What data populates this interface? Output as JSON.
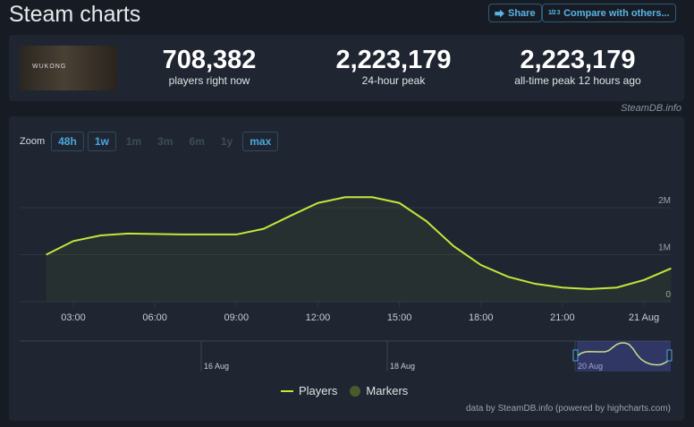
{
  "header": {
    "title": "Steam charts",
    "share_label": "Share",
    "compare_label": "Compare with others...",
    "compare_icon_text": "1/2 3"
  },
  "game": {
    "thumbnail_text": "WUKONG"
  },
  "stats": [
    {
      "value": "708,382",
      "label": "players right now"
    },
    {
      "value": "2,223,179",
      "label": "24-hour peak"
    },
    {
      "value": "2,223,179",
      "label": "all-time peak 12 hours ago"
    }
  ],
  "credit": "SteamDB.info",
  "zoom": {
    "label": "Zoom",
    "options": [
      {
        "label": "48h",
        "active": true
      },
      {
        "label": "1w",
        "active": true
      },
      {
        "label": "1m",
        "active": false
      },
      {
        "label": "3m",
        "active": false
      },
      {
        "label": "6m",
        "active": false
      },
      {
        "label": "1y",
        "active": false
      },
      {
        "label": "max",
        "active": true
      }
    ]
  },
  "legend": {
    "players": "Players",
    "markers": "Markers"
  },
  "footer": "data by SteamDB.info (powered by highcharts.com)",
  "colors": {
    "line": "#c5e63a",
    "marker": "#4b5a2c",
    "accent": "#4aa8e0"
  },
  "chart_data": {
    "type": "line",
    "series": [
      {
        "name": "Players",
        "x": [
          "20 Aug 02:00",
          "20 Aug 03:00",
          "20 Aug 04:00",
          "20 Aug 05:00",
          "20 Aug 06:00",
          "20 Aug 07:00",
          "20 Aug 08:00",
          "20 Aug 09:00",
          "20 Aug 10:00",
          "20 Aug 11:00",
          "20 Aug 12:00",
          "20 Aug 13:00",
          "20 Aug 14:00",
          "20 Aug 15:00",
          "20 Aug 16:00",
          "20 Aug 17:00",
          "20 Aug 18:00",
          "20 Aug 19:00",
          "20 Aug 20:00",
          "20 Aug 21:00",
          "20 Aug 22:00",
          "20 Aug 23:00",
          "21 Aug 00:00",
          "21 Aug 01:00"
        ],
        "values": [
          1000000,
          1290000,
          1410000,
          1450000,
          1440000,
          1430000,
          1430000,
          1430000,
          1550000,
          1830000,
          2100000,
          2223179,
          2223179,
          2100000,
          1710000,
          1180000,
          780000,
          530000,
          380000,
          300000,
          270000,
          300000,
          460000,
          708382
        ]
      }
    ],
    "xticks": [
      "03:00",
      "06:00",
      "09:00",
      "12:00",
      "15:00",
      "18:00",
      "21:00",
      "21 Aug"
    ],
    "yticks": [
      "0",
      "1M",
      "2M"
    ],
    "ylim": [
      0,
      2500000
    ],
    "grid": true,
    "navigator_labels": [
      "16 Aug",
      "18 Aug",
      "20 Aug"
    ]
  }
}
